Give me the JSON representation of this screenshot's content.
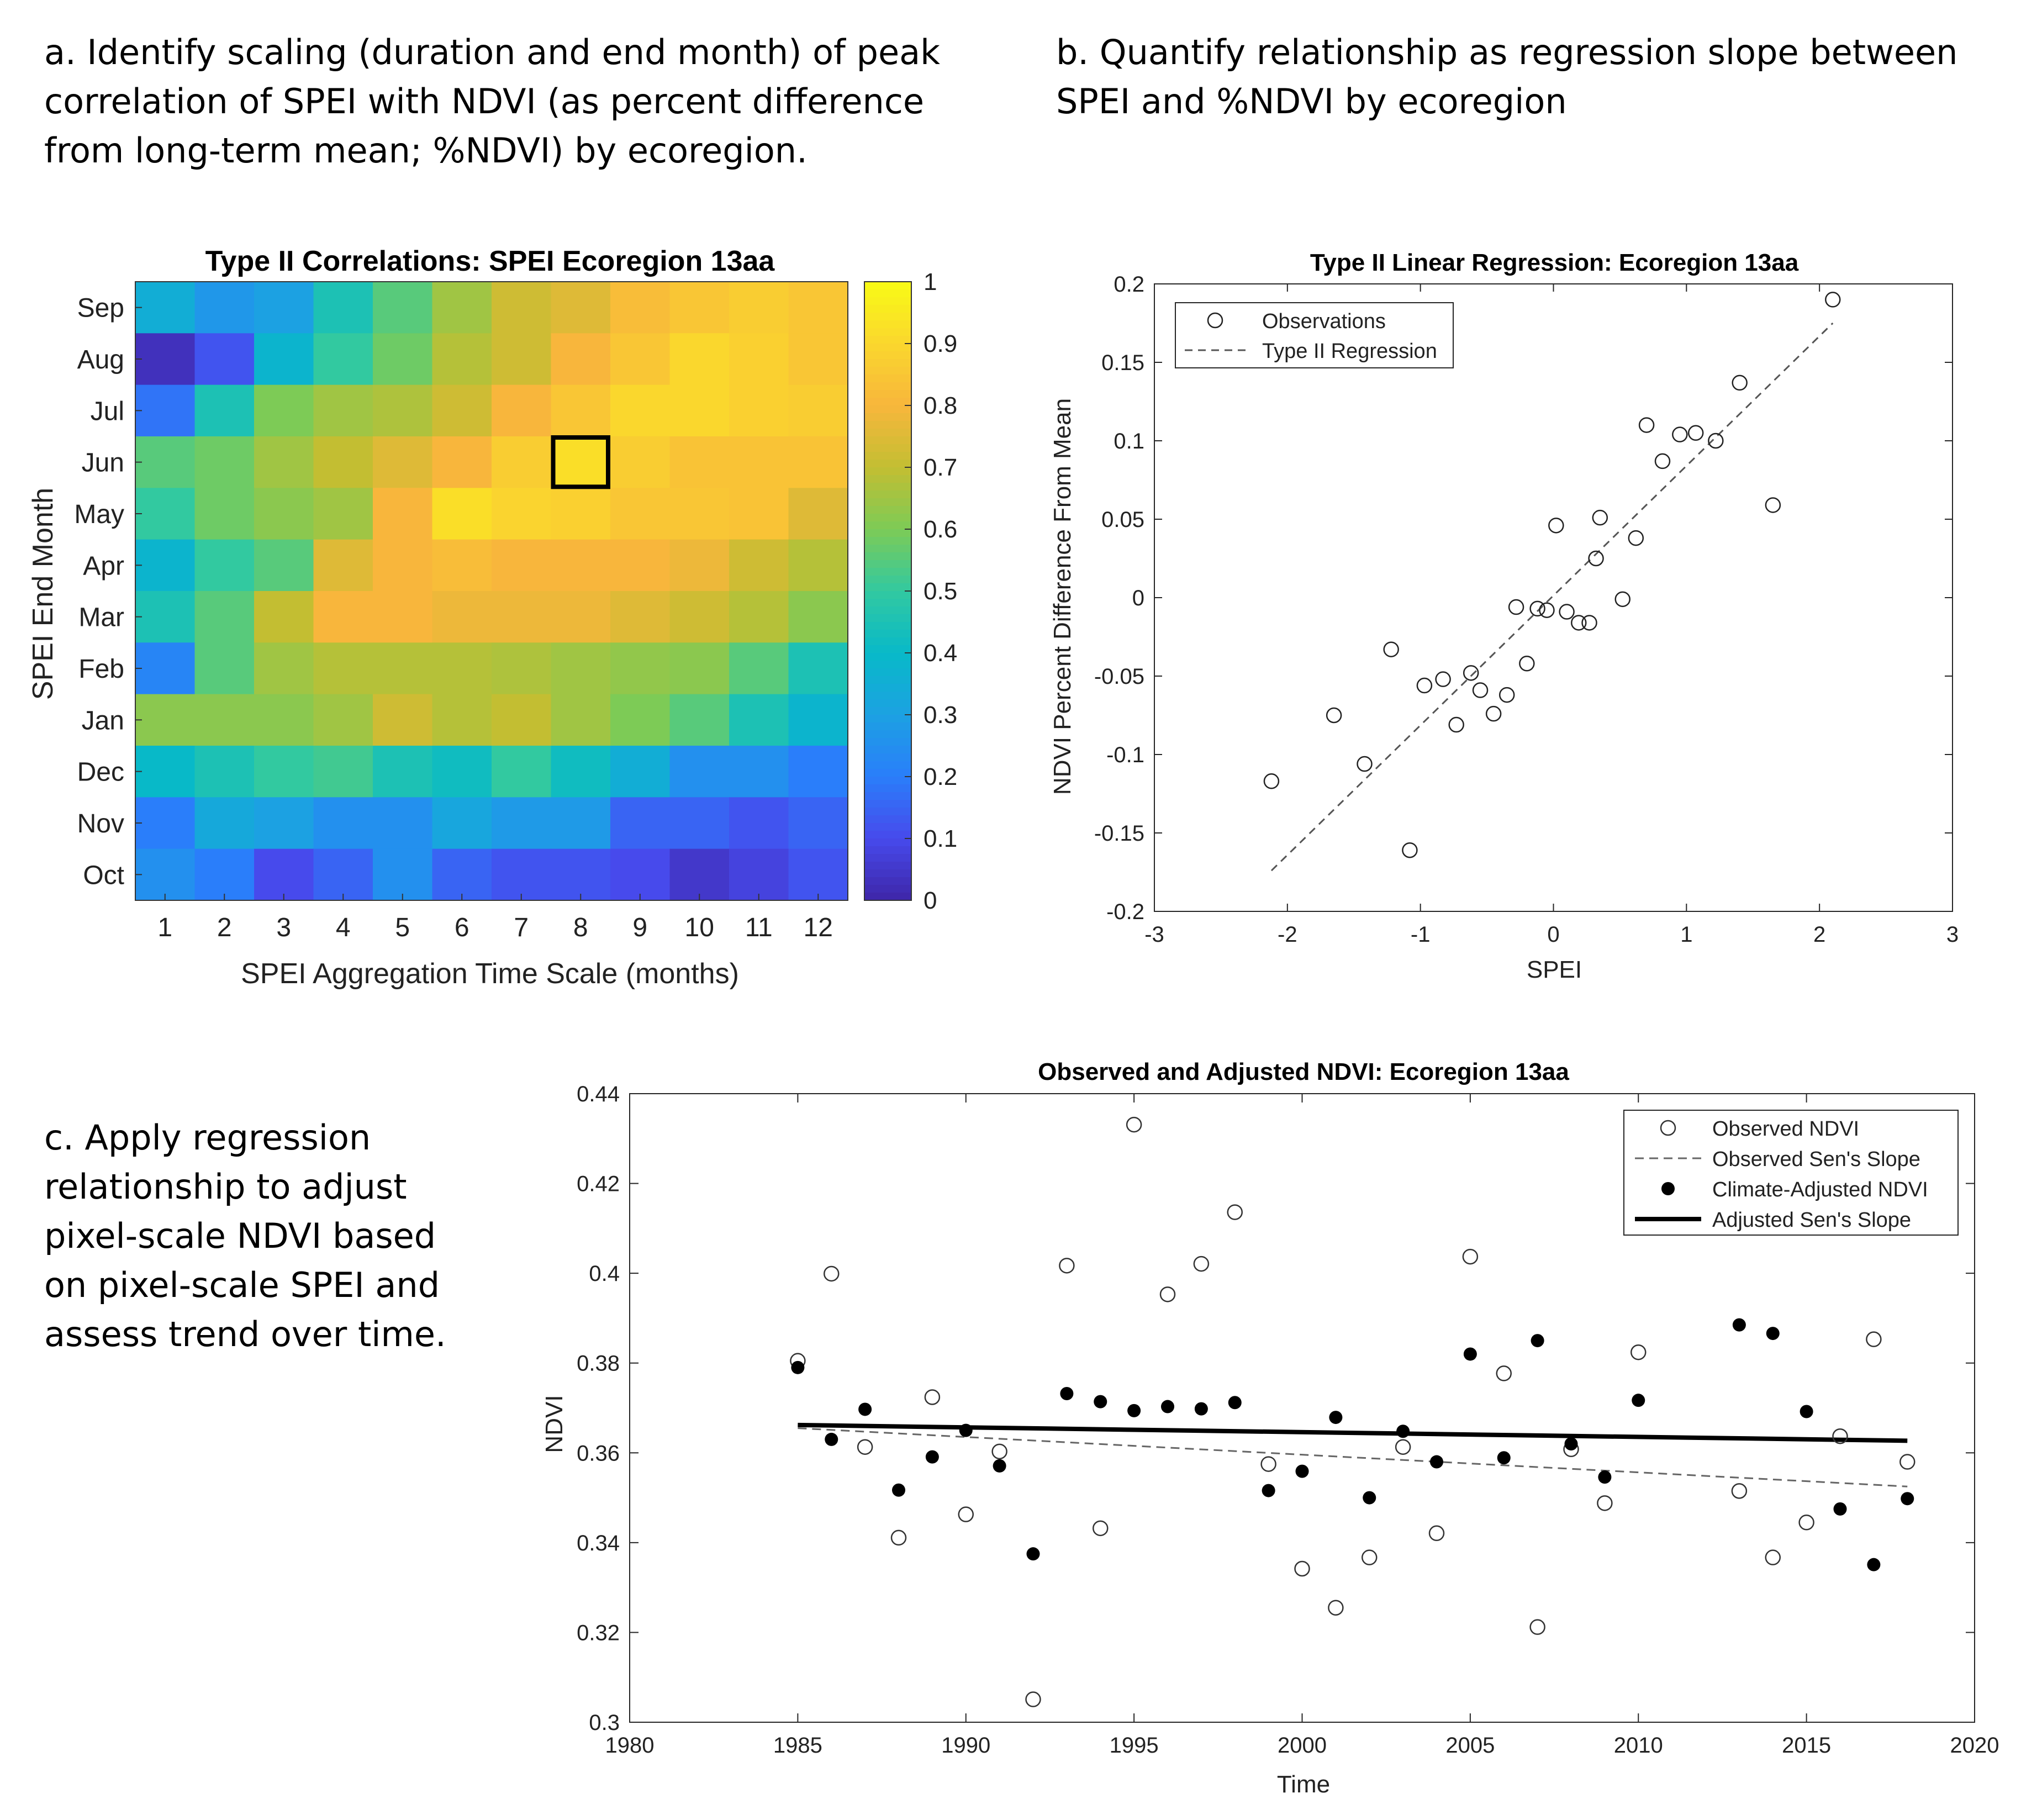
{
  "captions": {
    "a": [
      "a. Identify scaling (duration and end month) of peak",
      "correlation of SPEI with NDVI (as percent difference",
      "from long-term mean; %NDVI) by ecoregion."
    ],
    "b": [
      "b. Quantify relationship as regression slope between",
      "SPEI and %NDVI by ecoregion"
    ],
    "c": [
      "c. Apply regression",
      "relationship to adjust",
      "pixel-scale NDVI based",
      "on pixel-scale SPEI and",
      "assess trend over time."
    ]
  },
  "chart_data": [
    {
      "type": "heatmap",
      "title": "Type II Correlations: SPEI Ecoregion 13aa",
      "xlabel": "SPEI Aggregation Time Scale (months)",
      "ylabel": "SPEI End Month",
      "x": [
        "1",
        "2",
        "3",
        "4",
        "5",
        "6",
        "7",
        "8",
        "9",
        "10",
        "11",
        "12"
      ],
      "y": [
        "Sep",
        "Aug",
        "Jul",
        "Jun",
        "May",
        "Apr",
        "Mar",
        "Feb",
        "Jan",
        "Dec",
        "Nov",
        "Oct"
      ],
      "z": [
        [
          0.35,
          0.27,
          0.3,
          0.45,
          0.55,
          0.65,
          0.72,
          0.75,
          0.82,
          0.85,
          0.87,
          0.85
        ],
        [
          0.03,
          0.12,
          0.38,
          0.5,
          0.58,
          0.68,
          0.72,
          0.8,
          0.85,
          0.9,
          0.88,
          0.85
        ],
        [
          0.18,
          0.45,
          0.6,
          0.65,
          0.67,
          0.72,
          0.8,
          0.85,
          0.9,
          0.9,
          0.88,
          0.87
        ],
        [
          0.55,
          0.58,
          0.65,
          0.7,
          0.75,
          0.8,
          0.87,
          0.92,
          0.87,
          0.84,
          0.84,
          0.84
        ],
        [
          0.5,
          0.58,
          0.62,
          0.65,
          0.8,
          0.92,
          0.89,
          0.88,
          0.85,
          0.85,
          0.84,
          0.75
        ],
        [
          0.38,
          0.5,
          0.55,
          0.75,
          0.8,
          0.82,
          0.8,
          0.8,
          0.8,
          0.78,
          0.72,
          0.68
        ],
        [
          0.45,
          0.55,
          0.7,
          0.8,
          0.8,
          0.78,
          0.78,
          0.78,
          0.75,
          0.72,
          0.68,
          0.62
        ],
        [
          0.22,
          0.55,
          0.65,
          0.68,
          0.68,
          0.68,
          0.67,
          0.65,
          0.63,
          0.62,
          0.55,
          0.45
        ],
        [
          0.62,
          0.62,
          0.62,
          0.65,
          0.72,
          0.68,
          0.7,
          0.65,
          0.6,
          0.55,
          0.45,
          0.38
        ],
        [
          0.4,
          0.45,
          0.5,
          0.52,
          0.45,
          0.42,
          0.5,
          0.42,
          0.35,
          0.25,
          0.25,
          0.2
        ],
        [
          0.2,
          0.33,
          0.3,
          0.25,
          0.25,
          0.32,
          0.28,
          0.28,
          0.15,
          0.15,
          0.12,
          0.15
        ],
        [
          0.25,
          0.2,
          0.1,
          0.15,
          0.25,
          0.15,
          0.12,
          0.12,
          0.1,
          0.05,
          0.08,
          0.12
        ]
      ],
      "clim": [
        0,
        1
      ],
      "colorbar_ticks": [
        "0",
        "0.1",
        "0.2",
        "0.3",
        "0.4",
        "0.5",
        "0.6",
        "0.7",
        "0.8",
        "0.9",
        "1"
      ],
      "highlight": {
        "x": "8",
        "y": "Jun"
      },
      "colormap": "parula"
    },
    {
      "type": "scatter",
      "title": "Type II Linear Regression: Ecoregion 13aa",
      "xlabel": "SPEI",
      "ylabel": "NDVI Percent Difference From Mean",
      "xlim": [
        -3,
        3
      ],
      "ylim": [
        -0.2,
        0.2
      ],
      "xticks": [
        "-3",
        "-2",
        "-1",
        "0",
        "1",
        "2",
        "3"
      ],
      "yticks": [
        "0.2",
        "0.15",
        "0.1",
        "0.05",
        "0",
        "-0.05",
        "-0.1",
        "-0.15",
        "-0.2"
      ],
      "legend": [
        "Observations",
        "Type II Regression"
      ],
      "legend_position": "top-left",
      "series": [
        {
          "name": "Observations",
          "points": [
            [
              2.1,
              0.19
            ],
            [
              1.4,
              0.137
            ],
            [
              0.7,
              0.11
            ],
            [
              1.07,
              0.105
            ],
            [
              0.95,
              0.104
            ],
            [
              1.22,
              0.1
            ],
            [
              0.82,
              0.087
            ],
            [
              1.65,
              0.059
            ],
            [
              0.35,
              0.051
            ],
            [
              0.02,
              0.046
            ],
            [
              0.62,
              0.038
            ],
            [
              0.32,
              0.025
            ],
            [
              0.52,
              -0.001
            ],
            [
              -0.28,
              -0.006
            ],
            [
              -0.12,
              -0.007
            ],
            [
              -0.05,
              -0.008
            ],
            [
              0.1,
              -0.009
            ],
            [
              0.19,
              -0.016
            ],
            [
              0.27,
              -0.016
            ],
            [
              -1.22,
              -0.033
            ],
            [
              -0.2,
              -0.042
            ],
            [
              -0.62,
              -0.048
            ],
            [
              -0.83,
              -0.052
            ],
            [
              -0.97,
              -0.056
            ],
            [
              -0.55,
              -0.059
            ],
            [
              -0.35,
              -0.062
            ],
            [
              -0.45,
              -0.074
            ],
            [
              -1.65,
              -0.075
            ],
            [
              -0.73,
              -0.081
            ],
            [
              -1.42,
              -0.106
            ],
            [
              -2.12,
              -0.117
            ],
            [
              -1.08,
              -0.161
            ]
          ]
        },
        {
          "name": "Type II Regression",
          "line": [
            [
              -2.12,
              -0.174
            ],
            [
              2.1,
              0.175
            ]
          ]
        }
      ]
    },
    {
      "type": "scatter",
      "title": "Observed and Adjusted NDVI: Ecoregion 13aa",
      "xlabel": "Time",
      "ylabel": "NDVI",
      "xlim": [
        1980,
        2020
      ],
      "ylim": [
        0.3,
        0.44
      ],
      "xticks": [
        "1980",
        "1985",
        "1990",
        "1995",
        "2000",
        "2005",
        "2010",
        "2015",
        "2020"
      ],
      "yticks": [
        "0.44",
        "0.42",
        "0.4",
        "0.38",
        "0.36",
        "0.34",
        "0.32",
        "0.3"
      ],
      "legend": [
        "Observed NDVI",
        "Observed Sen's Slope",
        "Climate-Adjusted NDVI",
        "Adjusted Sen's Slope"
      ],
      "legend_position": "top-right",
      "series": [
        {
          "name": "Observed NDVI",
          "x": [
            1985,
            1986,
            1987,
            1988,
            1989,
            1990,
            1991,
            1992,
            1993,
            1994,
            1995,
            1996,
            1997,
            1998,
            1999,
            2000,
            2001,
            2002,
            2003,
            2004,
            2005,
            2006,
            2007,
            2008,
            2009,
            2010,
            2013,
            2014,
            2015,
            2016,
            2017,
            2018
          ],
          "y": [
            0.3805,
            0.3999,
            0.3613,
            0.3411,
            0.3724,
            0.3463,
            0.3603,
            0.3051,
            0.4017,
            0.3432,
            0.4331,
            0.3953,
            0.4021,
            0.4136,
            0.3575,
            0.3342,
            0.3255,
            0.3367,
            0.3613,
            0.3421,
            0.4037,
            0.3777,
            0.3212,
            0.3608,
            0.3488,
            0.3824,
            0.3515,
            0.3367,
            0.3445,
            0.3637,
            0.3853,
            0.358
          ]
        },
        {
          "name": "Observed Sen's Slope",
          "line": [
            [
              1985,
              0.3655
            ],
            [
              2018,
              0.3525
            ]
          ]
        },
        {
          "name": "Climate-Adjusted NDVI",
          "x": [
            1985,
            1986,
            1987,
            1988,
            1989,
            1990,
            1991,
            1992,
            1993,
            1994,
            1995,
            1996,
            1997,
            1998,
            1999,
            2000,
            2001,
            2002,
            2003,
            2004,
            2005,
            2006,
            2007,
            2008,
            2009,
            2010,
            2013,
            2014,
            2015,
            2016,
            2017,
            2018
          ],
          "y": [
            0.379,
            0.363,
            0.3697,
            0.3517,
            0.3591,
            0.365,
            0.3571,
            0.3375,
            0.3732,
            0.3714,
            0.3694,
            0.3703,
            0.3698,
            0.3712,
            0.3516,
            0.3559,
            0.3679,
            0.35,
            0.3648,
            0.358,
            0.382,
            0.3589,
            0.385,
            0.362,
            0.3546,
            0.3717,
            0.3885,
            0.3866,
            0.3692,
            0.3475,
            0.3351,
            0.3498
          ]
        },
        {
          "name": "Adjusted Sen's Slope",
          "line": [
            [
              1985,
              0.3662
            ],
            [
              2018,
              0.3627
            ]
          ]
        }
      ]
    }
  ]
}
